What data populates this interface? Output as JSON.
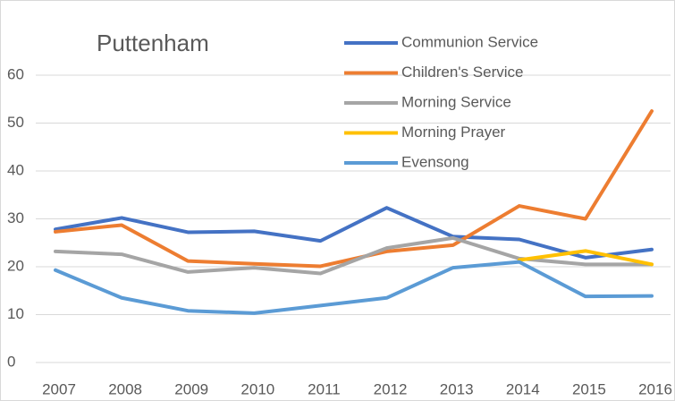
{
  "chart_data": {
    "type": "line",
    "title": "Puttenham",
    "categories": [
      "2007",
      "2008",
      "2009",
      "2010",
      "2011",
      "2012",
      "2013",
      "2014",
      "2015",
      "2016"
    ],
    "series": [
      {
        "name": "Communion Service",
        "color": "#4472c4",
        "values": [
          27.8,
          30.2,
          27.2,
          27.4,
          25.4,
          32.3,
          26.3,
          25.7,
          21.9,
          23.6
        ]
      },
      {
        "name": "Children's Service",
        "color": "#ed7d31",
        "values": [
          27.3,
          28.7,
          21.2,
          20.6,
          20.1,
          23.2,
          24.5,
          32.7,
          30.0,
          52.5
        ]
      },
      {
        "name": "Morning Service",
        "color": "#a5a5a5",
        "values": [
          23.2,
          22.6,
          18.9,
          19.8,
          18.6,
          23.9,
          26.0,
          21.7,
          20.5,
          20.5
        ]
      },
      {
        "name": "Morning Prayer",
        "color": "#ffc000",
        "values": [
          null,
          null,
          null,
          null,
          null,
          null,
          null,
          21.4,
          23.3,
          20.5
        ]
      },
      {
        "name": "Evensong",
        "color": "#5b9bd5",
        "values": [
          19.3,
          13.5,
          10.8,
          10.3,
          11.9,
          13.5,
          19.8,
          21.0,
          13.8,
          13.9
        ]
      }
    ],
    "ylim": [
      0,
      60
    ],
    "yticks": [
      0,
      10,
      20,
      30,
      40,
      50,
      60
    ],
    "grid": true,
    "legend": "top-right"
  }
}
